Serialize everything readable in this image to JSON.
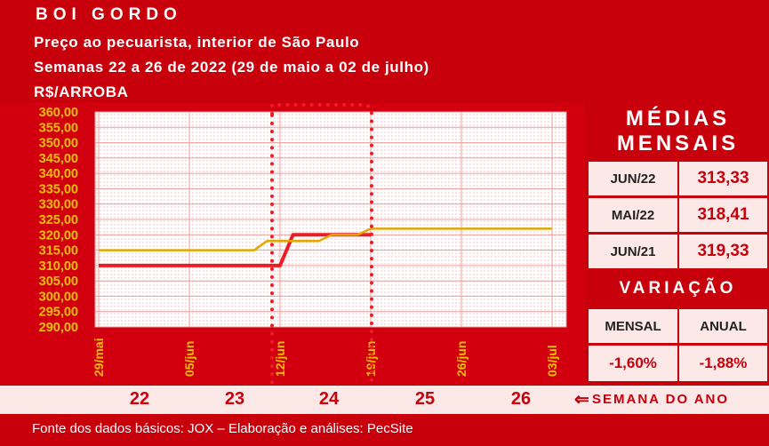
{
  "header": {
    "title": "BOI GORDO",
    "line1": "Preço ao pecuarista, interior de São Paulo",
    "line2": "Semanas 22 a 26 de 2022 (29 de maio a 02 de julho)",
    "unit": "R$/ARROBA"
  },
  "chart_data": {
    "type": "line",
    "x": [
      "29/mai",
      "30/mai",
      "31/mai",
      "01/jun",
      "02/jun",
      "03/jun",
      "04/jun",
      "05/jun",
      "06/jun",
      "07/jun",
      "08/jun",
      "09/jun",
      "10/jun",
      "11/jun",
      "12/jun",
      "13/jun",
      "14/jun",
      "15/jun",
      "16/jun",
      "17/jun",
      "18/jun",
      "19/jun",
      "20/jun",
      "21/jun",
      "22/jun",
      "23/jun",
      "24/jun",
      "25/jun",
      "26/jun",
      "27/jun",
      "28/jun",
      "29/jun",
      "30/jun",
      "01/jul",
      "02/jul",
      "03/jul"
    ],
    "x_tick_labels": [
      "29/mai",
      "05/jun",
      "12/jun",
      "19/jun",
      "26/jun",
      "03/jul"
    ],
    "ylim": [
      290,
      360
    ],
    "y_ticks": [
      "290,00",
      "295,00",
      "300,00",
      "305,00",
      "310,00",
      "315,00",
      "320,00",
      "325,00",
      "330,00",
      "335,00",
      "340,00",
      "345,00",
      "350,00",
      "355,00",
      "360,00"
    ],
    "series": [
      {
        "color": "#ee1c25",
        "values": [
          310,
          310,
          310,
          310,
          310,
          310,
          310,
          310,
          310,
          310,
          310,
          310,
          310,
          310,
          310,
          320,
          320,
          320,
          320,
          320,
          320,
          320,
          null,
          null,
          null,
          null,
          null,
          null,
          null,
          null,
          null,
          null,
          null,
          null,
          null,
          null
        ]
      },
      {
        "color": "#e0a800",
        "values": [
          315,
          315,
          315,
          315,
          315,
          315,
          315,
          315,
          315,
          315,
          315,
          315,
          315,
          318,
          318,
          318,
          318,
          318,
          320,
          320,
          320,
          322,
          322,
          322,
          322,
          322,
          322,
          322,
          322,
          322,
          322,
          322,
          322,
          322,
          322,
          322
        ]
      }
    ],
    "highlight_week": "24"
  },
  "panel": {
    "medias_title_1": "MÉDIAS",
    "medias_title_2": "MENSAIS",
    "rows": [
      {
        "label": "JUN/22",
        "value": "313,33"
      },
      {
        "label": "MAI/22",
        "value": "318,41"
      },
      {
        "label": "JUN/21",
        "value": "319,33"
      }
    ],
    "variacao_title": "VARIAÇÃO",
    "variacao_headers": [
      "MENSAL",
      "ANUAL"
    ],
    "variacao_values": [
      "-1,60%",
      "-1,88%"
    ]
  },
  "weeks": {
    "labels": [
      "22",
      "23",
      "24",
      "25",
      "26"
    ],
    "caption": "SEMANA DO ANO",
    "arrow": "⇐"
  },
  "footer": {
    "source": "Fonte dos dados básicos: JOX – Elaboração e análises: PecSite"
  },
  "colors": {
    "brand_red": "#c8000c",
    "pale_pink": "#fde8e8",
    "tick_gold": "#f2c200",
    "highlight_dots": "#ee1c25"
  }
}
